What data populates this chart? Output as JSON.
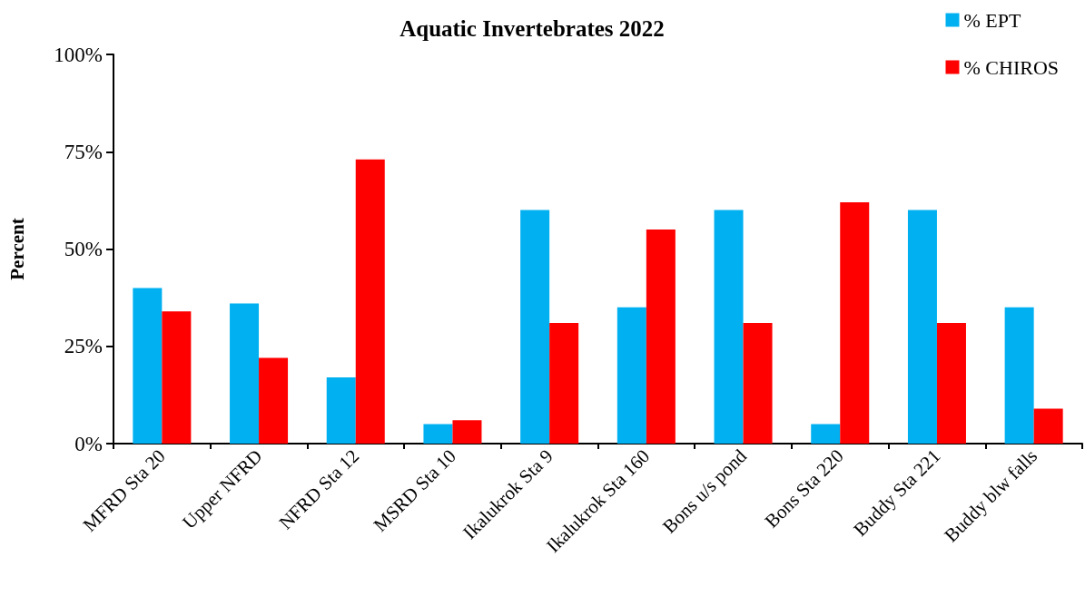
{
  "chart_data": {
    "type": "bar",
    "title": "Aquatic Invertebrates 2022",
    "ylabel": "Percent",
    "categories": [
      "MFRD Sta 20",
      "Upper NFRD",
      "NFRD Sta 12",
      "MSRD Sta 10",
      "Ikalukrok Sta 9",
      "Ikalukrok Sta 160",
      "Bons u/s pond",
      "Bons Sta 220",
      "Buddy Sta 221",
      "Buddy blw falls"
    ],
    "series": [
      {
        "name": "% EPT",
        "color": "#00b0f0",
        "values": [
          40,
          36,
          17,
          5,
          60,
          35,
          60,
          5,
          60,
          35
        ]
      },
      {
        "name": "% CHIROS",
        "color": "#ff0000",
        "values": [
          34,
          22,
          73,
          6,
          31,
          55,
          31,
          62,
          31,
          9
        ]
      }
    ],
    "ylim": [
      0,
      100
    ],
    "yticks": [
      {
        "value": 0,
        "label": "0%"
      },
      {
        "value": 25,
        "label": "25%"
      },
      {
        "value": 50,
        "label": "50%"
      },
      {
        "value": 75,
        "label": "75%"
      },
      {
        "value": 100,
        "label": "100%"
      }
    ],
    "grid": false,
    "legend": "top right"
  }
}
